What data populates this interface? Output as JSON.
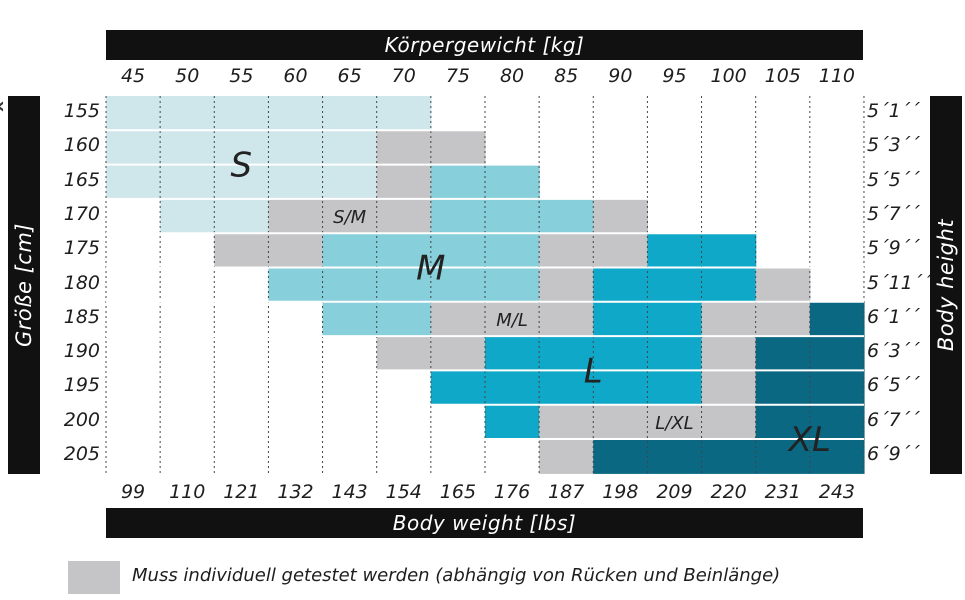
{
  "chart_data": {
    "type": "heatmap",
    "title": "Körpergewicht [kg]",
    "xlabel": "Body weight [lbs]",
    "ylabel_left": "Größe [cm]",
    "ylabel_right": "Body height",
    "x_kg": [
      "45",
      "50",
      "55",
      "60",
      "65",
      "70",
      "75",
      "80",
      "85",
      "90",
      "95",
      "100",
      "105",
      "110"
    ],
    "x_lbs": [
      "99",
      "110",
      "121",
      "132",
      "143",
      "154",
      "165",
      "176",
      "187",
      "198",
      "209",
      "220",
      "231",
      "243"
    ],
    "y_cm": [
      "155",
      "160",
      "165",
      "170",
      "175",
      "180",
      "185",
      "190",
      "195",
      "200",
      "205"
    ],
    "y_ft": [
      "5´1´´",
      "5´3´´",
      "5´5´´",
      "5´7´´",
      "5´9´´",
      "5´11´´",
      "6´1´´",
      "6´3´´",
      "6´5´´",
      "6´7´´",
      "6´9´´"
    ],
    "sizes": {
      "S": "#cfe6ea",
      "M": "#86cfdb",
      "L": "#10a8c8",
      "XL": "#0b6882",
      "G": "#c5c5c7"
    },
    "matrix": [
      [
        "S",
        "S",
        "S",
        "S",
        "S",
        "S",
        "-",
        "-",
        "-",
        "-",
        "-",
        "-",
        "-",
        "-"
      ],
      [
        "S",
        "S",
        "S",
        "S",
        "S",
        "G",
        "G",
        "-",
        "-",
        "-",
        "-",
        "-",
        "-",
        "-"
      ],
      [
        "S",
        "S",
        "S",
        "S",
        "S",
        "G",
        "M",
        "M",
        "-",
        "-",
        "-",
        "-",
        "-",
        "-"
      ],
      [
        "-",
        "S",
        "S",
        "G",
        "G",
        "G",
        "M",
        "M",
        "M",
        "G",
        "-",
        "-",
        "-",
        "-"
      ],
      [
        "-",
        "-",
        "G",
        "G",
        "M",
        "M",
        "M",
        "M",
        "G",
        "G",
        "L",
        "L",
        "-",
        "-"
      ],
      [
        "-",
        "-",
        "-",
        "M",
        "M",
        "M",
        "M",
        "M",
        "G",
        "L",
        "L",
        "L",
        "G",
        "-"
      ],
      [
        "-",
        "-",
        "-",
        "-",
        "M",
        "M",
        "G",
        "G",
        "G",
        "L",
        "L",
        "G",
        "G",
        "XL"
      ],
      [
        "-",
        "-",
        "-",
        "-",
        "-",
        "G",
        "G",
        "L",
        "L",
        "L",
        "L",
        "G",
        "XL",
        "XL"
      ],
      [
        "-",
        "-",
        "-",
        "-",
        "-",
        "-",
        "L",
        "L",
        "L",
        "L",
        "L",
        "G",
        "XL",
        "XL"
      ],
      [
        "-",
        "-",
        "-",
        "-",
        "-",
        "-",
        "-",
        "L",
        "G",
        "G",
        "G",
        "G",
        "XL",
        "XL"
      ],
      [
        "-",
        "-",
        "-",
        "-",
        "-",
        "-",
        "-",
        "-",
        "G",
        "XL",
        "XL",
        "XL",
        "XL",
        "XL"
      ]
    ],
    "labels": [
      {
        "text": "S",
        "col": 2.5,
        "row": 2.0
      },
      {
        "text": "S/M",
        "col": 4.5,
        "row": 3.5
      },
      {
        "text": "M",
        "col": 6.0,
        "row": 5.0
      },
      {
        "text": "M/L",
        "col": 7.5,
        "row": 6.5
      },
      {
        "text": "L",
        "col": 9.0,
        "row": 8.0
      },
      {
        "text": "L/XL",
        "col": 10.5,
        "row": 9.5
      },
      {
        "text": "XL",
        "col": 13.0,
        "row": 10.0
      }
    ],
    "legend": "Muss individuell getestet werden (abhängig von Rücken und Beinlänge)"
  }
}
